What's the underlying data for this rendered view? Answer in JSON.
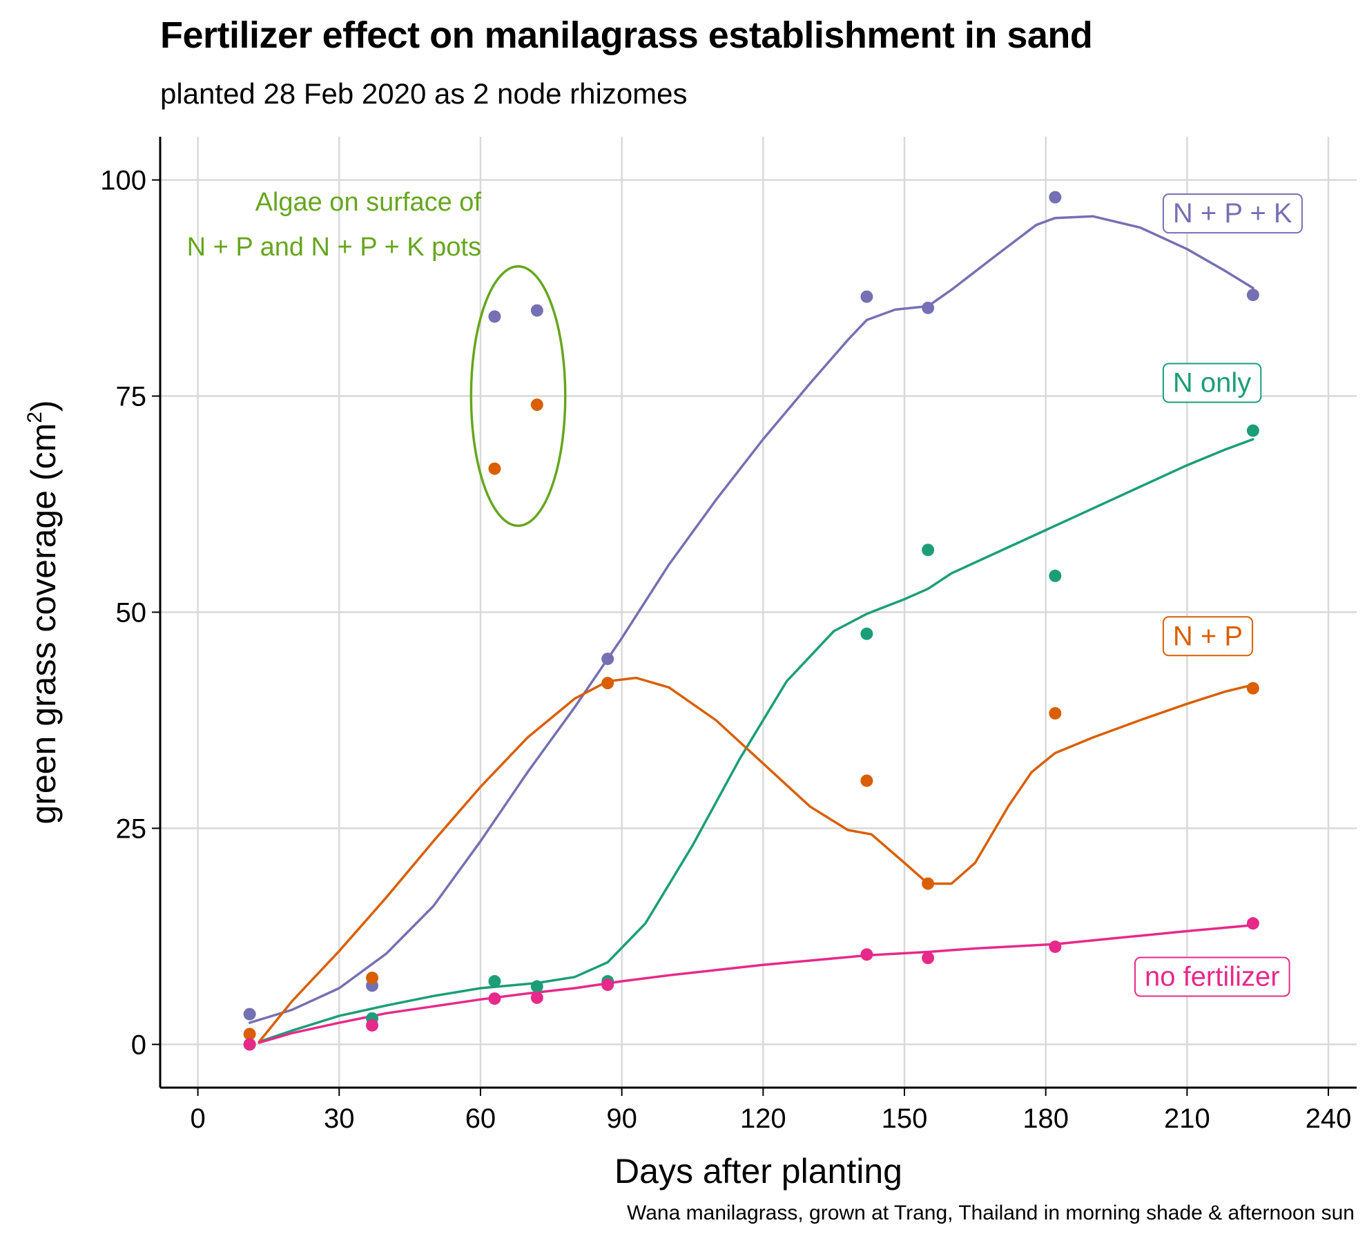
{
  "title": "Fertilizer effect on manilagrass establishment in sand",
  "subtitle": "planted 28 Feb 2020 as 2 node rhizomes",
  "caption": "Wana manilagrass, grown at Trang, Thailand in morning shade & afternoon sun",
  "annotation": {
    "line1": "Algae on surface of",
    "line2": "N + P and N + P + K pots",
    "color": "#66a61e",
    "ellipse_center": [
      68,
      75
    ],
    "ellipse_radius": [
      10,
      15
    ]
  },
  "chart_data": {
    "type": "scatter",
    "title": "Fertilizer effect on manilagrass establishment in sand",
    "xlabel": "Days after planting",
    "ylabel": "green grass coverage (cm",
    "ylabel_sup": "2",
    "ylabel_close": ")",
    "xlim": [
      -8,
      246
    ],
    "ylim": [
      -5,
      105
    ],
    "xticks": [
      0,
      30,
      60,
      90,
      120,
      150,
      180,
      210,
      240
    ],
    "yticks": [
      0,
      25,
      50,
      75,
      100
    ],
    "grid": true,
    "series": [
      {
        "name": "N + P + K",
        "color": "#7570b3",
        "points": [
          [
            11,
            3.5
          ],
          [
            37,
            6.8
          ],
          [
            63,
            84.2
          ],
          [
            72,
            84.9
          ],
          [
            87,
            44.6
          ],
          [
            142,
            86.5
          ],
          [
            155,
            85.2
          ],
          [
            182,
            98
          ],
          [
            224,
            86.7
          ]
        ],
        "smooth": [
          [
            11,
            2.5
          ],
          [
            20,
            4
          ],
          [
            30,
            6.5
          ],
          [
            40,
            10.5
          ],
          [
            50,
            16
          ],
          [
            60,
            23.5
          ],
          [
            70,
            31.5
          ],
          [
            80,
            39
          ],
          [
            90,
            47
          ],
          [
            100,
            55.5
          ],
          [
            110,
            63
          ],
          [
            120,
            70
          ],
          [
            130,
            76.5
          ],
          [
            138,
            81.5
          ],
          [
            142,
            83.8
          ],
          [
            148,
            85
          ],
          [
            155,
            85.4
          ],
          [
            160,
            87.3
          ],
          [
            170,
            91.5
          ],
          [
            178,
            94.8
          ],
          [
            182,
            95.6
          ],
          [
            190,
            95.8
          ],
          [
            200,
            94.5
          ],
          [
            210,
            92
          ],
          [
            218,
            89.5
          ],
          [
            224,
            87.5
          ]
        ]
      },
      {
        "name": "N only",
        "color": "#1b9e77",
        "points": [
          [
            11,
            0
          ],
          [
            37,
            3
          ],
          [
            63,
            7.3
          ],
          [
            72,
            6.7
          ],
          [
            87,
            7.3
          ],
          [
            142,
            47.5
          ],
          [
            155,
            57.2
          ],
          [
            182,
            54.2
          ],
          [
            224,
            71
          ]
        ],
        "smooth": [
          [
            13,
            0.3
          ],
          [
            20,
            1.6
          ],
          [
            30,
            3.3
          ],
          [
            40,
            4.5
          ],
          [
            50,
            5.6
          ],
          [
            60,
            6.5
          ],
          [
            72,
            7.1
          ],
          [
            80,
            7.8
          ],
          [
            87,
            9.5
          ],
          [
            95,
            14
          ],
          [
            105,
            23
          ],
          [
            115,
            33
          ],
          [
            125,
            42
          ],
          [
            135,
            47.8
          ],
          [
            142,
            49.8
          ],
          [
            150,
            51.5
          ],
          [
            155,
            52.7
          ],
          [
            160,
            54.5
          ],
          [
            170,
            57
          ],
          [
            180,
            59.5
          ],
          [
            190,
            62
          ],
          [
            200,
            64.5
          ],
          [
            210,
            67
          ],
          [
            218,
            68.8
          ],
          [
            224,
            70
          ]
        ]
      },
      {
        "name": "N + P",
        "color": "#d95f02",
        "points": [
          [
            11,
            1.2
          ],
          [
            37,
            7.7
          ],
          [
            63,
            66.6
          ],
          [
            72,
            74
          ],
          [
            87,
            41.8
          ],
          [
            142,
            30.5
          ],
          [
            155,
            18.6
          ],
          [
            182,
            38.3
          ],
          [
            224,
            41.2
          ]
        ],
        "smooth": [
          [
            13,
            0.3
          ],
          [
            20,
            5
          ],
          [
            30,
            10.8
          ],
          [
            40,
            17
          ],
          [
            50,
            23.5
          ],
          [
            60,
            29.8
          ],
          [
            70,
            35.5
          ],
          [
            80,
            40
          ],
          [
            87,
            42
          ],
          [
            93,
            42.4
          ],
          [
            100,
            41.3
          ],
          [
            110,
            37.5
          ],
          [
            120,
            32.5
          ],
          [
            130,
            27.5
          ],
          [
            138,
            24.8
          ],
          [
            143,
            24.3
          ],
          [
            150,
            21
          ],
          [
            155,
            18.6
          ],
          [
            160,
            18.6
          ],
          [
            165,
            21
          ],
          [
            172,
            27.5
          ],
          [
            177,
            31.5
          ],
          [
            182,
            33.7
          ],
          [
            190,
            35.5
          ],
          [
            200,
            37.5
          ],
          [
            210,
            39.4
          ],
          [
            218,
            40.8
          ],
          [
            224,
            41.6
          ]
        ]
      },
      {
        "name": "no fertilizer",
        "color": "#e7298a",
        "points": [
          [
            11,
            0
          ],
          [
            37,
            2.2
          ],
          [
            63,
            5.3
          ],
          [
            72,
            5.4
          ],
          [
            87,
            6.9
          ],
          [
            142,
            10.4
          ],
          [
            155,
            10
          ],
          [
            182,
            11.3
          ],
          [
            224,
            14
          ]
        ],
        "smooth": [
          [
            13,
            0.2
          ],
          [
            20,
            1.3
          ],
          [
            30,
            2.5
          ],
          [
            40,
            3.6
          ],
          [
            50,
            4.4
          ],
          [
            60,
            5.2
          ],
          [
            70,
            5.9
          ],
          [
            80,
            6.5
          ],
          [
            90,
            7.3
          ],
          [
            100,
            8
          ],
          [
            110,
            8.6
          ],
          [
            120,
            9.2
          ],
          [
            130,
            9.7
          ],
          [
            142,
            10.3
          ],
          [
            155,
            10.7
          ],
          [
            165,
            11.1
          ],
          [
            182,
            11.6
          ],
          [
            195,
            12.3
          ],
          [
            210,
            13.1
          ],
          [
            224,
            13.8
          ]
        ]
      }
    ],
    "labels": [
      {
        "text": "N + P + K",
        "color": "#7570b3",
        "x": 207,
        "y": 96.2
      },
      {
        "text": "N only",
        "color": "#1b9e77",
        "x": 207,
        "y": 76.6
      },
      {
        "text": "N + P",
        "color": "#d95f02",
        "x": 207,
        "y": 47.3
      },
      {
        "text": "no fertilizer",
        "color": "#e7298a",
        "x": 201,
        "y": 7.9
      }
    ]
  }
}
